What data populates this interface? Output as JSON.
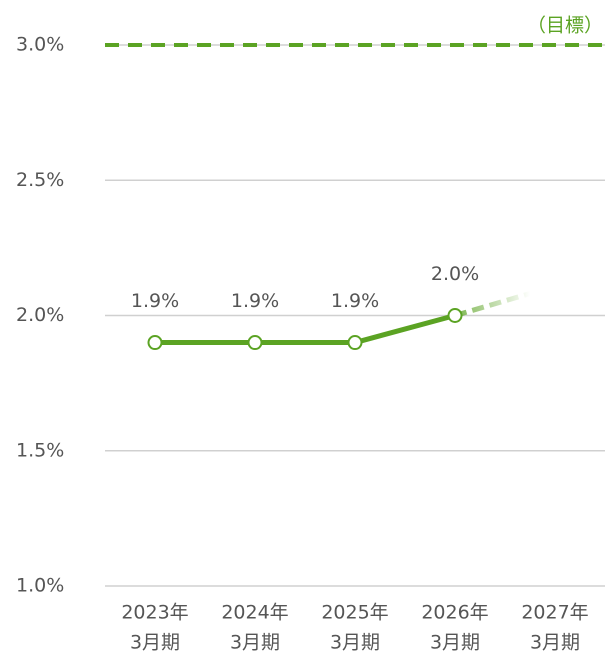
{
  "chart_data": {
    "type": "line",
    "categories": [
      [
        "2023年",
        "3月期"
      ],
      [
        "2024年",
        "3月期"
      ],
      [
        "2025年",
        "3月期"
      ],
      [
        "2026年",
        "3月期"
      ],
      [
        "2027年",
        "3月期"
      ]
    ],
    "values": [
      1.9,
      1.9,
      1.9,
      2.0,
      null
    ],
    "value_labels": [
      "1.9%",
      "1.9%",
      "1.9%",
      "2.0%",
      null
    ],
    "color": "#5ba323",
    "target": {
      "value": 3.0,
      "label": "（目標）",
      "color": "#5ba323"
    },
    "ylim": [
      1.0,
      3.0
    ],
    "yticks": [
      {
        "value": 1.0,
        "label": "1.0%"
      },
      {
        "value": 1.5,
        "label": "1.5%"
      },
      {
        "value": 2.0,
        "label": "2.0%"
      },
      {
        "value": 2.5,
        "label": "2.5%"
      },
      {
        "value": 3.0,
        "label": "3.0%"
      }
    ],
    "grid": true
  }
}
